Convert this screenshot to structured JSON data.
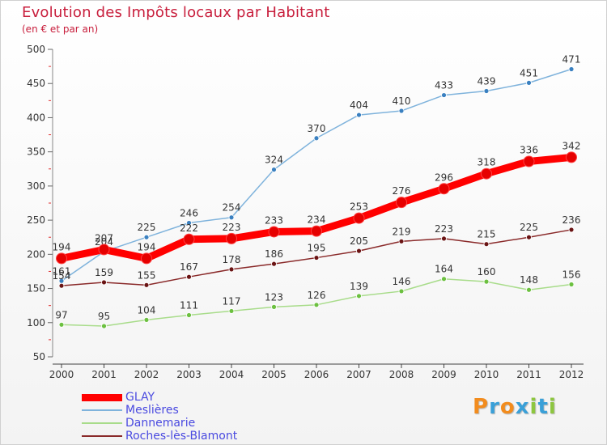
{
  "title": "Evolution des Impôts locaux par Habitant",
  "subtitle": "(en € et par an)",
  "logo": {
    "text": "Proxiti",
    "letters": [
      {
        "ch": "P",
        "color": "#f28c1e"
      },
      {
        "ch": "r",
        "color": "#3aa0d8"
      },
      {
        "ch": "o",
        "color": "#f28c1e"
      },
      {
        "ch": "x",
        "color": "#3aa0d8"
      },
      {
        "ch": "i",
        "color": "#8dc63f"
      },
      {
        "ch": "t",
        "color": "#3aa0d8"
      },
      {
        "ch": "i",
        "color": "#8dc63f"
      }
    ]
  },
  "chart_data": {
    "type": "line",
    "title": "Evolution des Impôts locaux par Habitant",
    "subtitle": "(en € et par an)",
    "categories": [
      "2000",
      "2001",
      "2002",
      "2003",
      "2004",
      "2005",
      "2006",
      "2007",
      "2008",
      "2009",
      "2010",
      "2011",
      "2012"
    ],
    "ylim": [
      50,
      500
    ],
    "yticks": [
      50,
      100,
      150,
      200,
      250,
      300,
      350,
      400,
      450,
      500
    ],
    "grid": false,
    "legend_position": "bottom-left",
    "series": [
      {
        "name": "GLAY",
        "color": "#ff0000",
        "marker": "#e60000",
        "emphasis": true,
        "values": [
          194,
          207,
          194,
          222,
          223,
          233,
          234,
          253,
          276,
          296,
          318,
          336,
          342
        ],
        "labels": [
          "194",
          "207",
          "194",
          "222",
          "223",
          "233",
          "234",
          "253",
          "276",
          "296",
          "318",
          "336",
          "342"
        ]
      },
      {
        "name": "Meslières",
        "color": "#7fb3dc",
        "marker": "#3a80c0",
        "emphasis": false,
        "values": [
          161,
          204,
          225,
          246,
          254,
          324,
          370,
          404,
          410,
          433,
          439,
          451,
          471
        ],
        "labels": [
          "161",
          "204",
          "225",
          "246",
          "254",
          "324",
          "370",
          "404",
          "410",
          "433",
          "439",
          "451",
          "471"
        ]
      },
      {
        "name": "Dannemarie",
        "color": "#a8dc8a",
        "marker": "#6cc040",
        "emphasis": false,
        "values": [
          97,
          95,
          104,
          111,
          117,
          123,
          126,
          139,
          146,
          164,
          160,
          148,
          156
        ],
        "labels": [
          "97",
          "95",
          "104",
          "111",
          "117",
          "123",
          "126",
          "139",
          "146",
          "164",
          "160",
          "148",
          "156"
        ]
      },
      {
        "name": "Roches-lès-Blamont",
        "color": "#8a2a2a",
        "marker": "#6a1414",
        "emphasis": false,
        "values": [
          154,
          159,
          155,
          167,
          178,
          186,
          195,
          205,
          219,
          223,
          215,
          225,
          236
        ],
        "labels": [
          "154",
          "159",
          "155",
          "167",
          "178",
          "186",
          "195",
          "205",
          "219",
          "223",
          "215",
          "225",
          "236"
        ]
      }
    ]
  }
}
